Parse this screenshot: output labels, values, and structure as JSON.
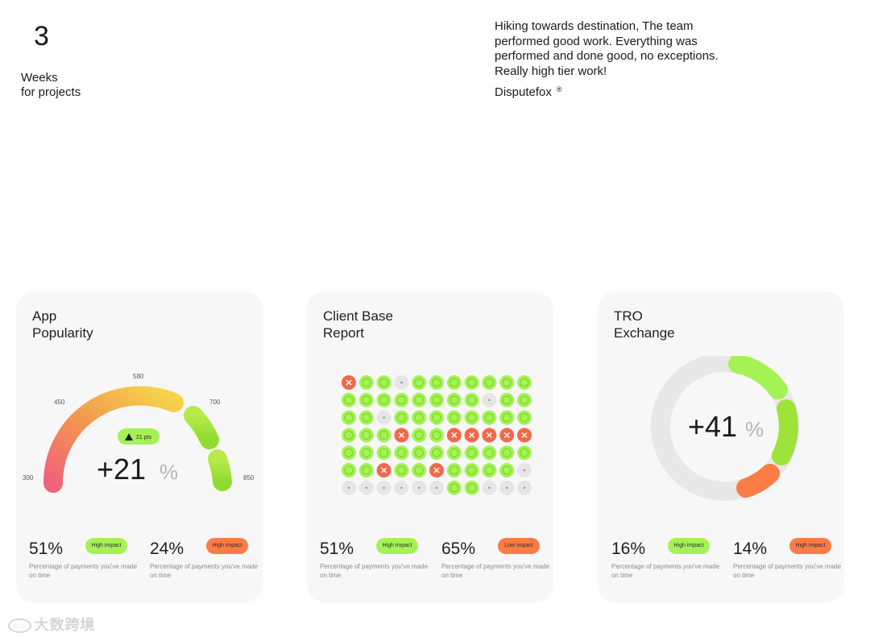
{
  "stat": {
    "number": "3",
    "label": "Weeks\nfor projects"
  },
  "testimonial": {
    "quote": "Hiking towards destination, The team performed good work. Everything was performed and done good, no exceptions. Really high tier work!",
    "brand": "Disputefox",
    "registered": "®"
  },
  "cards": [
    {
      "title": "App\nPopularity",
      "gauge": {
        "ticks": [
          "300",
          "450",
          "580",
          "700",
          "850"
        ],
        "badge": "21 pts",
        "value": "+21",
        "unit": "%",
        "progress": 0.55
      },
      "metrics": [
        {
          "value": "51%",
          "pill": "High impact",
          "pill_color": "green",
          "desc": "Percentage of payments you've made on time"
        },
        {
          "value": "24%",
          "pill": "High impact",
          "pill_color": "orange",
          "desc": "Percentage of payments you've made on time"
        }
      ]
    },
    {
      "title": "Client Base\nReport",
      "grid": [
        "xggdggggggg",
        "ggggggggdgg",
        "ggdgggggggg",
        "gggxggxxxxx",
        "ggggggggggg",
        "ggxggxggggd",
        "ddddddggddd"
      ],
      "metrics": [
        {
          "value": "51%",
          "pill": "High impact",
          "pill_color": "green",
          "desc": "Percentage of payments you've made on time"
        },
        {
          "value": "65%",
          "pill": "Low impact",
          "pill_color": "orange",
          "desc": "Percentage of payments you've made on time"
        }
      ]
    },
    {
      "title": "TRO\nExchange",
      "donut": {
        "value": "+41",
        "unit": "%"
      },
      "metrics": [
        {
          "value": "16%",
          "pill": "High impact",
          "pill_color": "green",
          "desc": "Percentage of payments you've made on time"
        },
        {
          "value": "14%",
          "pill": "High impact",
          "pill_color": "orange",
          "desc": "Percentage of payments you've made on time"
        }
      ]
    }
  ],
  "colors": {
    "green": "#a6f256",
    "green_dark": "#7fdc2b",
    "orange": "#fb7c45",
    "red": "#f06a4a",
    "grey": "#e6e6e6",
    "pink": "#f0637a",
    "yellow": "#f6d64a"
  },
  "watermark": "大数跨境"
}
